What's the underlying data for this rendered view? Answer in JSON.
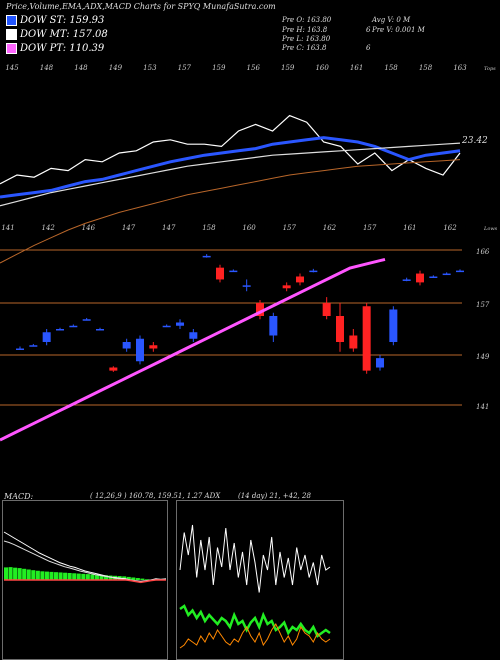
{
  "header": {
    "title": "Price,Volume,EMA,ADX,MACD Charts for SPYQ MunafaSutra.com"
  },
  "legend": [
    {
      "label": "DOW ST: 159.93",
      "color": "#2255ff"
    },
    {
      "label": "DOW MT: 157.08",
      "color": "#ffffff"
    },
    {
      "label": "DOW PT: 110.39",
      "color": "#ff66ff"
    }
  ],
  "ohlc": {
    "col1": [
      "Pre  O: 163.80",
      "Pre  H: 163.8",
      "Pre  L: 163.80",
      "Pre  C: 163.8"
    ],
    "col1_extra": [
      "",
      "6",
      "",
      "6"
    ],
    "col2": [
      "Avg V: 0  M",
      "Pre  V: 0.001 M"
    ]
  },
  "chart_data": [
    {
      "type": "line",
      "panel": "price-ema",
      "x_top_labels": [
        "145",
        "148",
        "148",
        "149",
        "153",
        "157",
        "159",
        "156",
        "159",
        "160",
        "161",
        "158",
        "158",
        "163"
      ],
      "x_bottom_labels": [
        "141",
        "142",
        "146",
        "147",
        "147",
        "158",
        "160",
        "157",
        "162",
        "157",
        "161",
        "162"
      ],
      "top_label": "Tops",
      "bottom_label": "Lows",
      "value_label": "23.42",
      "series": [
        {
          "name": "",
          "color": "#ffffff",
          "values": [
            0.58,
            0.5,
            0.52,
            0.44,
            0.46,
            0.36,
            0.38,
            0.3,
            0.28,
            0.2,
            0.18,
            0.22,
            0.22,
            0.24,
            0.1,
            0.04,
            0.1,
            -0.04,
            0.02,
            0.2,
            0.24,
            0.4,
            0.3,
            0.46,
            0.36,
            0.44,
            0.5,
            0.3
          ]
        },
        {
          "name": "",
          "color": "#2a56ff",
          "values": [
            0.7,
            0.68,
            0.66,
            0.64,
            0.6,
            0.56,
            0.54,
            0.5,
            0.46,
            0.42,
            0.38,
            0.35,
            0.32,
            0.3,
            0.28,
            0.26,
            0.22,
            0.2,
            0.18,
            0.16,
            0.18,
            0.2,
            0.24,
            0.3,
            0.36,
            0.32,
            0.3,
            0.28
          ]
        },
        {
          "name": "",
          "color": "#dddddd",
          "values": [
            0.78,
            0.74,
            0.7,
            0.66,
            0.63,
            0.6,
            0.57,
            0.54,
            0.51,
            0.48,
            0.45,
            0.42,
            0.4,
            0.38,
            0.36,
            0.34,
            0.32,
            0.31,
            0.3,
            0.29,
            0.28,
            0.27,
            0.26,
            0.25,
            0.24,
            0.23,
            0.22,
            0.21
          ]
        },
        {
          "name": "",
          "color": "#b8662a",
          "values": [
            1.3,
            1.22,
            1.14,
            1.07,
            1.0,
            0.94,
            0.89,
            0.84,
            0.8,
            0.76,
            0.72,
            0.68,
            0.65,
            0.62,
            0.59,
            0.56,
            0.53,
            0.5,
            0.48,
            0.46,
            0.44,
            0.42,
            0.41,
            0.4,
            0.39,
            0.38,
            0.37,
            0.36
          ]
        }
      ]
    },
    {
      "type": "candlestick",
      "panel": "price-candles",
      "y_tick_labels": [
        "166",
        "157",
        "149",
        "141"
      ],
      "candles": [
        {
          "o": 150,
          "c": 150,
          "h": 150.3,
          "l": 149.8
        },
        {
          "o": 150.5,
          "c": 150.5,
          "h": 150.7,
          "l": 150.3
        },
        {
          "o": 151,
          "c": 152.5,
          "h": 153,
          "l": 150.5
        },
        {
          "o": 153,
          "c": 153,
          "h": 153.2,
          "l": 152.8
        },
        {
          "o": 153.5,
          "c": 153.5,
          "h": 153.7,
          "l": 153.3
        },
        {
          "o": 154.5,
          "c": 154.5,
          "h": 154.7,
          "l": 154.3
        },
        {
          "o": 153,
          "c": 153,
          "h": 153.2,
          "l": 152.8
        },
        {
          "o": 147,
          "c": 146.5,
          "h": 147.2,
          "l": 146.3
        },
        {
          "o": 150,
          "c": 151,
          "h": 151.5,
          "l": 149.5
        },
        {
          "o": 148,
          "c": 151.5,
          "h": 152,
          "l": 147.5
        },
        {
          "o": 150.5,
          "c": 150,
          "h": 151,
          "l": 149.5
        },
        {
          "o": 153.5,
          "c": 153.5,
          "h": 153.7,
          "l": 153.3
        },
        {
          "o": 153.5,
          "c": 154,
          "h": 154.5,
          "l": 153
        },
        {
          "o": 151.5,
          "c": 152.5,
          "h": 153,
          "l": 151
        },
        {
          "o": 165,
          "c": 165,
          "h": 165.3,
          "l": 164.7
        },
        {
          "o": 163,
          "c": 161,
          "h": 163.5,
          "l": 160.5
        },
        {
          "o": 162.5,
          "c": 162.5,
          "h": 162.7,
          "l": 162.3
        },
        {
          "o": 160,
          "c": 160,
          "h": 161,
          "l": 159
        },
        {
          "o": 157,
          "c": 155,
          "h": 157.5,
          "l": 154.5
        },
        {
          "o": 152,
          "c": 155,
          "h": 155.5,
          "l": 151
        },
        {
          "o": 160,
          "c": 159.5,
          "h": 160.5,
          "l": 159
        },
        {
          "o": 161.5,
          "c": 160.5,
          "h": 162,
          "l": 160
        },
        {
          "o": 162.5,
          "c": 162.5,
          "h": 162.8,
          "l": 162.2
        },
        {
          "o": 157,
          "c": 155,
          "h": 158,
          "l": 154.5
        },
        {
          "o": 155,
          "c": 151,
          "h": 157,
          "l": 149.5
        },
        {
          "o": 152,
          "c": 150,
          "h": 153,
          "l": 149.5
        },
        {
          "o": 156.5,
          "c": 146.5,
          "h": 157,
          "l": 146
        },
        {
          "o": 147,
          "c": 148.5,
          "h": 149,
          "l": 146.5
        },
        {
          "o": 151,
          "c": 156,
          "h": 156.5,
          "l": 150.5
        },
        {
          "o": 161,
          "c": 161,
          "h": 161.3,
          "l": 160.7
        },
        {
          "o": 162,
          "c": 160.5,
          "h": 162.5,
          "l": 160
        },
        {
          "o": 161.5,
          "c": 161.5,
          "h": 161.7,
          "l": 161.3
        },
        {
          "o": 162,
          "c": 162,
          "h": 162.2,
          "l": 161.8
        },
        {
          "o": 162.5,
          "c": 162.5,
          "h": 162.7,
          "l": 162.3
        }
      ],
      "pt_line": [
        120,
        122,
        124,
        126,
        128,
        130,
        132,
        134,
        136,
        138,
        140,
        142,
        144,
        146,
        148,
        150,
        152,
        154,
        156,
        158,
        160,
        161,
        162
      ]
    },
    {
      "type": "area",
      "panel": "macd",
      "title": "MACD:",
      "stats": "( 12,26,9 ) 160.78,  159.51,  1.27 ADX",
      "histogram": [
        0.9,
        0.92,
        0.88,
        0.85,
        0.8,
        0.75,
        0.7,
        0.66,
        0.62,
        0.6,
        0.58,
        0.56,
        0.54,
        0.52,
        0.5,
        0.48,
        0.46,
        0.44,
        0.42,
        0.4,
        0.38,
        0.36,
        0.34,
        0.32,
        0.3,
        0.28,
        0.26,
        0.22,
        0.18,
        0.14,
        0.1,
        0.05,
        0.02
      ],
      "series": [
        {
          "name": "",
          "color": "#ffffff",
          "values": [
            1.6,
            1.5,
            1.4,
            1.3,
            1.2,
            1.1,
            1.0,
            0.9,
            0.82,
            0.74,
            0.66,
            0.58,
            0.52,
            0.46,
            0.42,
            0.36,
            0.3,
            0.26,
            0.22,
            0.18,
            0.14,
            0.1,
            0.08,
            0.06,
            0.04,
            0.0,
            -0.04,
            -0.08,
            -0.04,
            0.0,
            0.04,
            0.02,
            0.04
          ]
        },
        {
          "name": "",
          "color": "#dddddd",
          "values": [
            1.3,
            1.25,
            1.18,
            1.1,
            1.02,
            0.94,
            0.86,
            0.78,
            0.7,
            0.62,
            0.56,
            0.5,
            0.44,
            0.4,
            0.35,
            0.3,
            0.26,
            0.22,
            0.18,
            0.15,
            0.12,
            0.09,
            0.06,
            0.04,
            0.02,
            0.0,
            -0.02,
            -0.04,
            -0.02,
            0.0,
            0.02,
            0.02,
            0.03
          ]
        },
        {
          "name": "",
          "color": "#ff4444",
          "values": [
            0,
            0,
            0,
            0,
            0,
            0,
            0,
            0,
            0,
            0,
            0,
            0,
            0,
            0,
            0,
            0,
            0,
            0,
            0,
            0,
            0,
            0,
            0,
            0,
            0,
            -0.02,
            -0.05,
            -0.08,
            -0.05,
            -0.02,
            0,
            0,
            0
          ]
        }
      ]
    },
    {
      "type": "line",
      "panel": "adx",
      "stats": "(14  day) 21,  +42,  28",
      "series": [
        {
          "name": "",
          "color": "#ffffff",
          "values": [
            0.6,
            0.85,
            0.7,
            0.9,
            0.55,
            0.8,
            0.6,
            0.82,
            0.5,
            0.75,
            0.62,
            0.88,
            0.6,
            0.78,
            0.55,
            0.72,
            0.5,
            0.8,
            0.65,
            0.45,
            0.7,
            0.6,
            0.82,
            0.5,
            0.72,
            0.55,
            0.68,
            0.5,
            0.75,
            0.6,
            0.7,
            0.55,
            0.65,
            0.5,
            0.7,
            0.6,
            0.62
          ]
        },
        {
          "name": "",
          "color": "#22ee22",
          "values": [
            0.34,
            0.36,
            0.3,
            0.33,
            0.28,
            0.32,
            0.26,
            0.3,
            0.27,
            0.24,
            0.28,
            0.26,
            0.22,
            0.3,
            0.24,
            0.26,
            0.2,
            0.25,
            0.28,
            0.22,
            0.3,
            0.24,
            0.26,
            0.2,
            0.22,
            0.25,
            0.18,
            0.22,
            0.2,
            0.24,
            0.2,
            0.18,
            0.22,
            0.16,
            0.18,
            0.2,
            0.18
          ]
        },
        {
          "name": "",
          "color": "#ff8800",
          "values": [
            0.08,
            0.1,
            0.14,
            0.12,
            0.1,
            0.16,
            0.12,
            0.18,
            0.14,
            0.2,
            0.16,
            0.12,
            0.1,
            0.14,
            0.12,
            0.18,
            0.22,
            0.16,
            0.12,
            0.18,
            0.1,
            0.14,
            0.2,
            0.24,
            0.18,
            0.12,
            0.16,
            0.1,
            0.14,
            0.22,
            0.18,
            0.16,
            0.12,
            0.18,
            0.14,
            0.12,
            0.14
          ]
        }
      ]
    }
  ]
}
